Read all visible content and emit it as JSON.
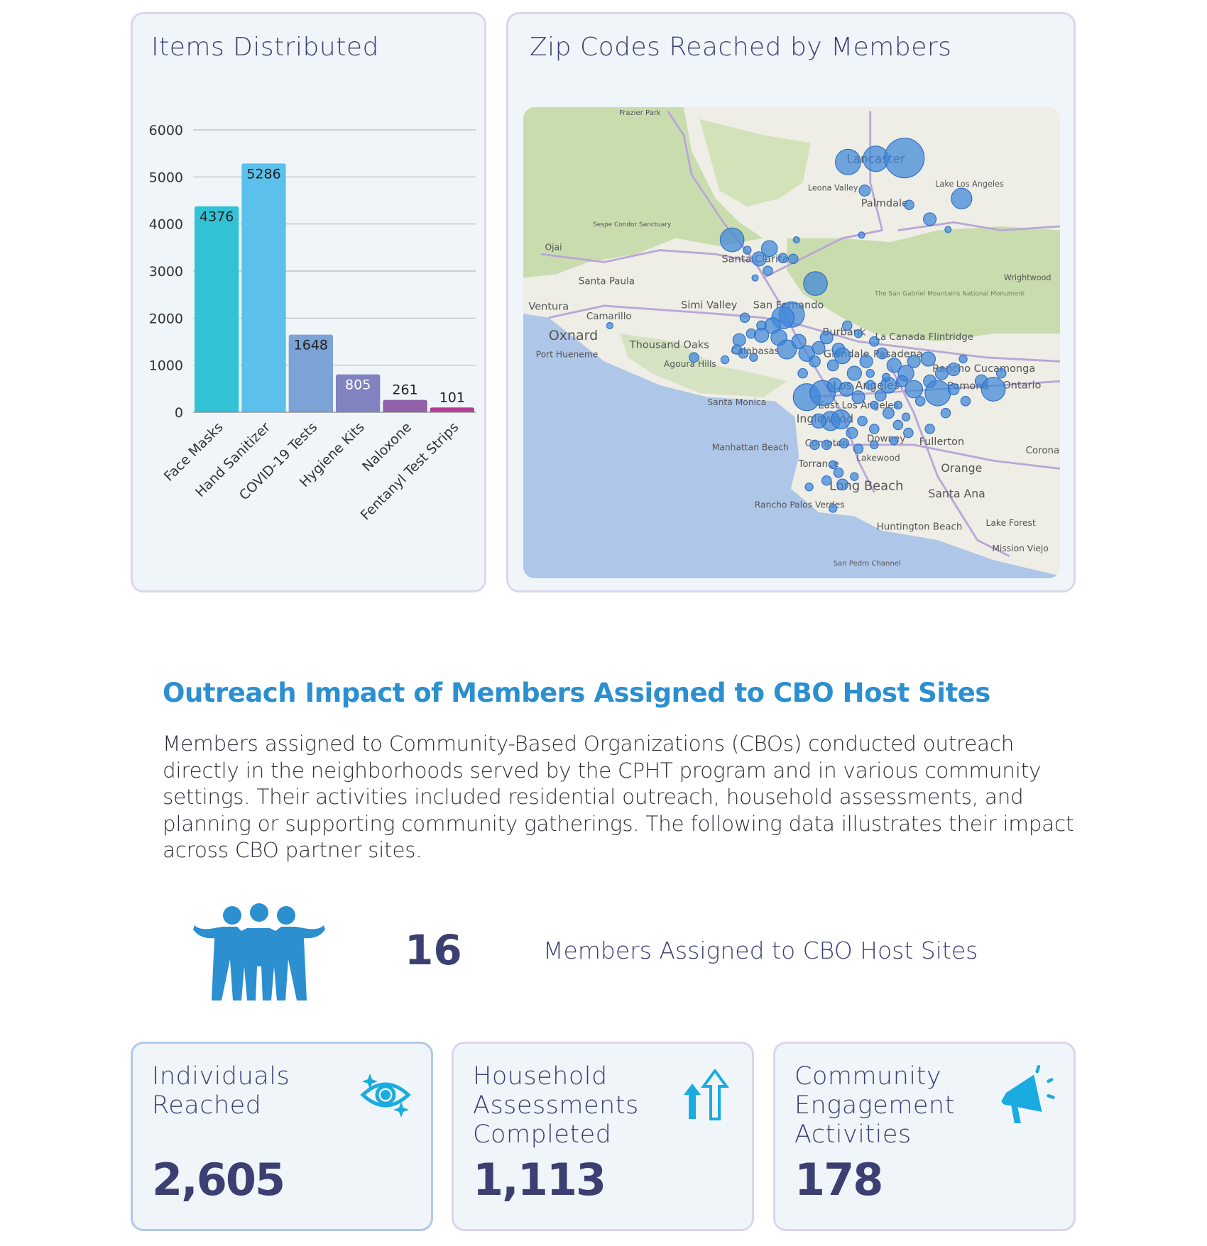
{
  "items_card": {
    "title": "Items Distributed"
  },
  "chart_data": {
    "type": "bar",
    "title": "Items Distributed",
    "categories": [
      "Face Masks",
      "Hand Sanitizer",
      "COVID-19 Tests",
      "Hygiene Kits",
      "Naloxone",
      "Fentanyl Test Strips"
    ],
    "values": [
      4376,
      5286,
      1648,
      805,
      261,
      101
    ],
    "colors": [
      "#31c2d5",
      "#5bc0ec",
      "#7ba3d6",
      "#8083bf",
      "#9060a8",
      "#b83a96"
    ],
    "ylim": [
      0,
      6000
    ],
    "yticks": [
      0,
      1000,
      2000,
      3000,
      4000,
      5000,
      6000
    ],
    "grid": true,
    "data_labels": true,
    "xlabel": "",
    "ylabel": ""
  },
  "map_card": {
    "title": "Zip Codes Reached by Members",
    "labels": [
      "Frazier Park",
      "Lancaster",
      "Leona Valley",
      "Palmdale",
      "Lake Los Angeles",
      "Sespe Condor Sanctuary",
      "Ojai",
      "Santa Clarita",
      "Santa Paula",
      "Ventura",
      "Camarillo",
      "Simi Valley",
      "San Fernando",
      "Oxnard",
      "Port Hueneme",
      "Thousand Oaks",
      "Agoura Hills",
      "Calabasas",
      "Burbank",
      "La Canada Flintridge",
      "Glendale",
      "Pasadena",
      "The San Gabriel Mountains National Monument",
      "Wrightwood",
      "Rancho Cucamonga",
      "Pomona",
      "Ontario",
      "Los Angeles",
      "Santa Monica",
      "East Los Angeles",
      "Inglewood",
      "Downey",
      "Fullerton",
      "Compton",
      "Manhattan Beach",
      "Torrance",
      "Lakewood",
      "Orange",
      "Long Beach",
      "Santa Ana",
      "Rancho Palos Verdes",
      "Huntington Beach",
      "Lake Forest",
      "Mission Viejo",
      "San Pedro Channel",
      "Corona"
    ],
    "marker_color": "#3f86d8"
  },
  "section": {
    "heading": "Outreach Impact of Members Assigned to CBO Host Sites",
    "body": "Members assigned to Community-Based Organizations (CBOs) conducted outreach directly in the neighborhoods served by the CPHT program and in various community settings. Their activities included residential outreach, household assessments, and planning or supporting community gatherings. The following data illustrates their impact across CBO partner sites."
  },
  "members": {
    "icon": "people-group-icon",
    "count": "16",
    "label": "Members Assigned to CBO Host Sites"
  },
  "stats": [
    {
      "title": "Individuals Reached",
      "value": "2,605",
      "icon": "eye-target-icon"
    },
    {
      "title": "Household Assessments Completed",
      "value": "1,113",
      "icon": "up-arrows-icon"
    },
    {
      "title": "Community Engagement Activities",
      "value": "178",
      "icon": "megaphone-icon"
    }
  ],
  "accent_colors": {
    "heading": "#2b8fd0",
    "text": "#3b3f72",
    "icon": "#1aace0"
  }
}
